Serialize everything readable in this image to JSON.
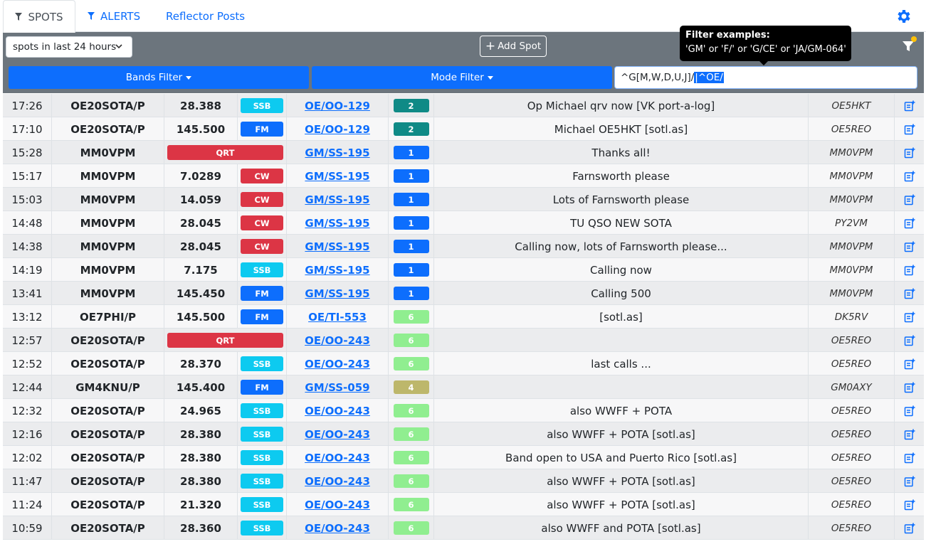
{
  "tabs": [
    {
      "label": "SPOTS",
      "icon": "funnel-icon"
    },
    {
      "label": "ALERTS",
      "icon": "funnel-icon"
    },
    {
      "label": "Reflector Posts"
    }
  ],
  "toolbar": {
    "time_filter": "spots in last 24 hours",
    "add_spot_label": "Add Spot"
  },
  "filters": {
    "bands_label": "Bands Filter",
    "mode_label": "Mode Filter",
    "input_value_plain": "^G[M,W,D,U,J]/",
    "input_value_selected": "|^OE/"
  },
  "tooltip": {
    "title": "Filter examples:",
    "body": "'GM' or 'F/' or 'G/CE' or 'JA/GM-064'"
  },
  "colors": {
    "SSB": "#0dcaf0",
    "FM": "#0d6efd",
    "CW": "#dc3545",
    "QRT": "#dc3545",
    "pts_2": "#0f8a86",
    "pts_1": "#0d6efd",
    "pts_6": "#90ee90",
    "pts_4": "#bdb76b"
  },
  "spots": [
    {
      "time": "17:26",
      "call": "OE20SOTA/P",
      "freq": "28.388",
      "mode": "SSB",
      "summit": "OE/OO-129",
      "points": "2",
      "comment": "Op Michael qrv now [VK port-a-log]",
      "spotter": "OE5HKT"
    },
    {
      "time": "17:10",
      "call": "OE20SOTA/P",
      "freq": "145.500",
      "mode": "FM",
      "summit": "OE/OO-129",
      "points": "2",
      "comment": "Michael OE5HKT [sotl.as]",
      "spotter": "OE5REO"
    },
    {
      "time": "15:28",
      "call": "MM0VPM",
      "freq": "",
      "mode": "QRT",
      "summit": "GM/SS-195",
      "points": "1",
      "comment": "Thanks all!",
      "spotter": "MM0VPM"
    },
    {
      "time": "15:17",
      "call": "MM0VPM",
      "freq": "7.0289",
      "mode": "CW",
      "summit": "GM/SS-195",
      "points": "1",
      "comment": "Farnsworth please",
      "spotter": "MM0VPM"
    },
    {
      "time": "15:03",
      "call": "MM0VPM",
      "freq": "14.059",
      "mode": "CW",
      "summit": "GM/SS-195",
      "points": "1",
      "comment": "Lots of Farnsworth please",
      "spotter": "MM0VPM"
    },
    {
      "time": "14:48",
      "call": "MM0VPM",
      "freq": "28.045",
      "mode": "CW",
      "summit": "GM/SS-195",
      "points": "1",
      "comment": "TU QSO NEW SOTA",
      "spotter": "PY2VM"
    },
    {
      "time": "14:38",
      "call": "MM0VPM",
      "freq": "28.045",
      "mode": "CW",
      "summit": "GM/SS-195",
      "points": "1",
      "comment": "Calling now, lots of Farnsworth please...",
      "spotter": "MM0VPM"
    },
    {
      "time": "14:19",
      "call": "MM0VPM",
      "freq": "7.175",
      "mode": "SSB",
      "summit": "GM/SS-195",
      "points": "1",
      "comment": "Calling now",
      "spotter": "MM0VPM"
    },
    {
      "time": "13:41",
      "call": "MM0VPM",
      "freq": "145.450",
      "mode": "FM",
      "summit": "GM/SS-195",
      "points": "1",
      "comment": "Calling 500",
      "spotter": "MM0VPM"
    },
    {
      "time": "13:12",
      "call": "OE7PHI/P",
      "freq": "145.500",
      "mode": "FM",
      "summit": "OE/TI-553",
      "points": "6",
      "comment": "[sotl.as]",
      "spotter": "DK5RV"
    },
    {
      "time": "12:57",
      "call": "OE20SOTA/P",
      "freq": "",
      "mode": "QRT",
      "summit": "OE/OO-243",
      "points": "6",
      "comment": "",
      "spotter": "OE5REO"
    },
    {
      "time": "12:52",
      "call": "OE20SOTA/P",
      "freq": "28.370",
      "mode": "SSB",
      "summit": "OE/OO-243",
      "points": "6",
      "comment": "last calls ...",
      "spotter": "OE5REO"
    },
    {
      "time": "12:44",
      "call": "GM4KNU/P",
      "freq": "145.400",
      "mode": "FM",
      "summit": "GM/SS-059",
      "points": "4",
      "comment": "",
      "spotter": "GM0AXY"
    },
    {
      "time": "12:32",
      "call": "OE20SOTA/P",
      "freq": "24.965",
      "mode": "SSB",
      "summit": "OE/OO-243",
      "points": "6",
      "comment": "also WWFF + POTA",
      "spotter": "OE5REO"
    },
    {
      "time": "12:16",
      "call": "OE20SOTA/P",
      "freq": "28.380",
      "mode": "SSB",
      "summit": "OE/OO-243",
      "points": "6",
      "comment": "also WWFF + POTA [sotl.as]",
      "spotter": "OE5REO"
    },
    {
      "time": "12:02",
      "call": "OE20SOTA/P",
      "freq": "28.380",
      "mode": "SSB",
      "summit": "OE/OO-243",
      "points": "6",
      "comment": "Band open to USA and Puerto Rico [sotl.as]",
      "spotter": "OE5REO"
    },
    {
      "time": "11:47",
      "call": "OE20SOTA/P",
      "freq": "28.380",
      "mode": "SSB",
      "summit": "OE/OO-243",
      "points": "6",
      "comment": "also WWFF + POTA [sotl.as]",
      "spotter": "OE5REO"
    },
    {
      "time": "11:24",
      "call": "OE20SOTA/P",
      "freq": "21.320",
      "mode": "SSB",
      "summit": "OE/OO-243",
      "points": "6",
      "comment": "also WWFF + POTA [sotl.as]",
      "spotter": "OE5REO"
    },
    {
      "time": "10:59",
      "call": "OE20SOTA/P",
      "freq": "28.360",
      "mode": "SSB",
      "summit": "OE/OO-243",
      "points": "6",
      "comment": "also WWFF and POTA [sotl.as]",
      "spotter": "OE5REO"
    }
  ]
}
